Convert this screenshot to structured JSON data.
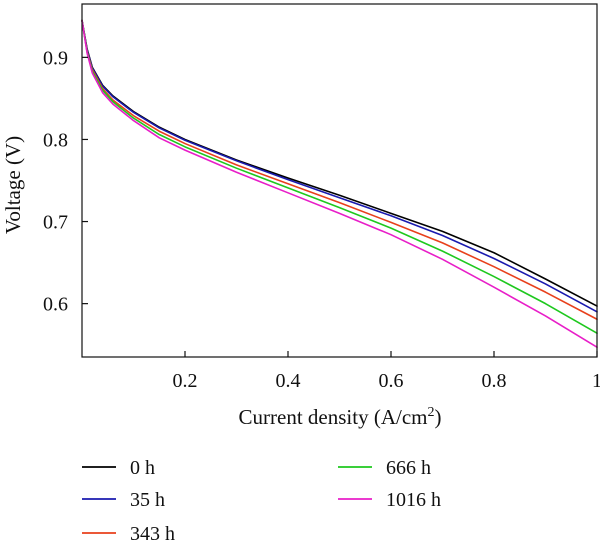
{
  "chart_data": {
    "type": "line",
    "title": "",
    "xlabel": "Current density (A/cm",
    "xlabel_superscript": "2",
    "xlabel_suffix": ")",
    "ylabel": "Voltage (V)",
    "xlim": [
      0,
      1
    ],
    "ylim": [
      0.535,
      0.965
    ],
    "grid": false,
    "legend_position": "bottom",
    "x_ticks": [
      {
        "value": 0.2,
        "label": "0.2"
      },
      {
        "value": 0.4,
        "label": "0.4"
      },
      {
        "value": 0.6,
        "label": "0.6"
      },
      {
        "value": 0.8,
        "label": "0.8"
      },
      {
        "value": 1.0,
        "label": "1"
      }
    ],
    "y_ticks": [
      {
        "value": 0.6,
        "label": "0.6"
      },
      {
        "value": 0.7,
        "label": "0.7"
      },
      {
        "value": 0.8,
        "label": "0.8"
      },
      {
        "value": 0.9,
        "label": "0.9"
      }
    ],
    "x": [
      0.0,
      0.01,
      0.02,
      0.04,
      0.06,
      0.1,
      0.15,
      0.2,
      0.3,
      0.4,
      0.5,
      0.6,
      0.7,
      0.8,
      0.9,
      1.0
    ],
    "series": [
      {
        "name": "0 h",
        "color": "#000000",
        "values": [
          0.945,
          0.91,
          0.888,
          0.866,
          0.853,
          0.834,
          0.815,
          0.8,
          0.775,
          0.753,
          0.732,
          0.71,
          0.688,
          0.662,
          0.63,
          0.597
        ]
      },
      {
        "name": "35 h",
        "color": "#1a1aaf",
        "values": [
          0.945,
          0.909,
          0.887,
          0.865,
          0.852,
          0.833,
          0.814,
          0.799,
          0.774,
          0.751,
          0.729,
          0.707,
          0.683,
          0.655,
          0.624,
          0.59
        ]
      },
      {
        "name": "343 h",
        "color": "#e8401c",
        "values": [
          0.945,
          0.907,
          0.885,
          0.862,
          0.848,
          0.829,
          0.81,
          0.795,
          0.769,
          0.746,
          0.723,
          0.699,
          0.674,
          0.645,
          0.614,
          0.581
        ]
      },
      {
        "name": "666 h",
        "color": "#1ec81e",
        "values": [
          0.945,
          0.906,
          0.883,
          0.86,
          0.846,
          0.826,
          0.806,
          0.791,
          0.765,
          0.741,
          0.717,
          0.692,
          0.664,
          0.633,
          0.6,
          0.564
        ]
      },
      {
        "name": "1016 h",
        "color": "#e81ec8",
        "values": [
          0.945,
          0.905,
          0.881,
          0.857,
          0.843,
          0.823,
          0.802,
          0.787,
          0.76,
          0.735,
          0.71,
          0.684,
          0.654,
          0.62,
          0.585,
          0.547
        ]
      }
    ]
  }
}
